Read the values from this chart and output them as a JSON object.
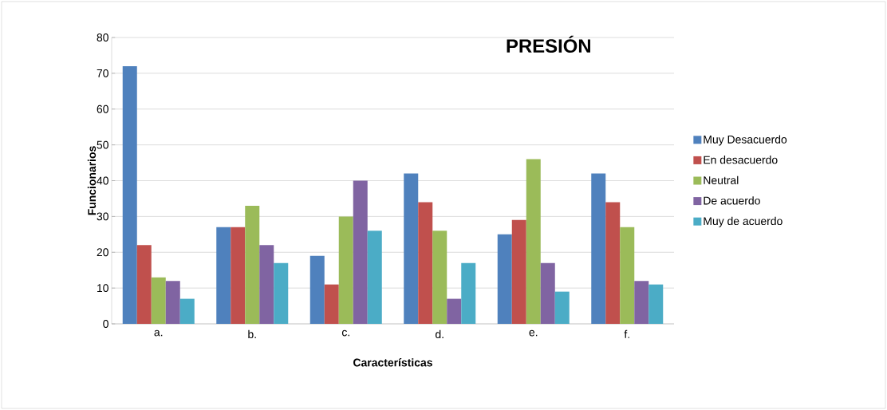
{
  "chart_data": {
    "type": "bar",
    "title": "PRESIÓN",
    "xlabel": "Características",
    "ylabel": "Funcionarios",
    "categories": [
      "a.",
      "b.",
      "c.",
      "d.",
      "e.",
      "f."
    ],
    "series": [
      {
        "name": "Muy Desacuerdo",
        "color": "#4f81bd",
        "values": [
          72,
          27,
          19,
          42,
          25,
          42
        ]
      },
      {
        "name": "En desacuerdo",
        "color": "#c0504d",
        "values": [
          22,
          27,
          11,
          34,
          29,
          34
        ]
      },
      {
        "name": "Neutral",
        "color": "#9bbb59",
        "values": [
          13,
          33,
          30,
          26,
          46,
          27
        ]
      },
      {
        "name": "De acuerdo",
        "color": "#8064a2",
        "values": [
          12,
          22,
          40,
          7,
          17,
          12
        ]
      },
      {
        "name": "Muy de acuerdo",
        "color": "#4bacc6",
        "values": [
          7,
          17,
          26,
          17,
          9,
          11
        ]
      }
    ],
    "ylim": [
      0,
      80
    ],
    "yticks": [
      0,
      10,
      20,
      30,
      40,
      50,
      60,
      70,
      80
    ],
    "grid": "y",
    "legend": "right"
  }
}
